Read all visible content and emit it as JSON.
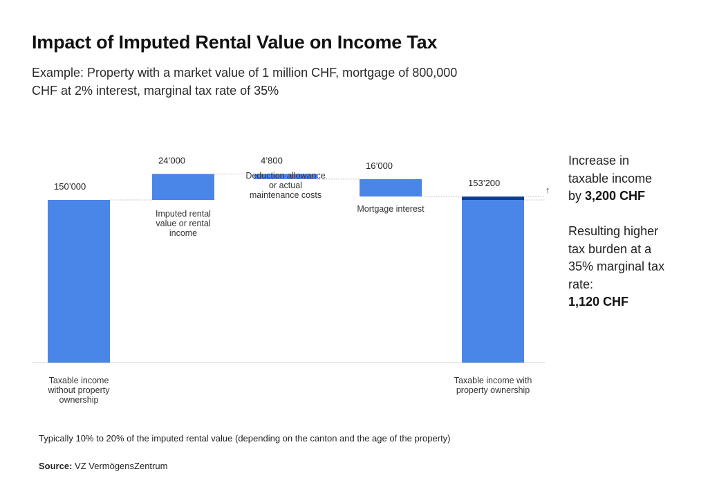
{
  "title": "Impact of Imputed Rental Value on Income Tax",
  "subtitle": "Example: Property with a market value of 1 million CHF, mortgage of 800,000 CHF at 2% interest, marginal tax rate of 35%",
  "colors": {
    "bar": "#4a86e8",
    "increase": "#0b3d91",
    "axis": "#cccccc",
    "connector": "#b5b5b5"
  },
  "chart_data": {
    "type": "waterfall",
    "steps": [
      {
        "label": [
          "Taxable income",
          "without property",
          "ownership"
        ],
        "value_label": "150’000",
        "value": 150000,
        "kind": "total"
      },
      {
        "label": [
          "Imputed rental",
          "value or rental",
          "income"
        ],
        "value_label": "24’000",
        "value": 24000,
        "kind": "increase"
      },
      {
        "label": [
          "Deduction allowance",
          "or actual",
          "maintenance costs"
        ],
        "value_label": "4’800",
        "value": -4800,
        "kind": "decrease"
      },
      {
        "label": [
          "Mortgage interest"
        ],
        "value_label": "16’000",
        "value": -16000,
        "kind": "decrease"
      },
      {
        "label": [
          "Taxable income with",
          "property ownership"
        ],
        "value_label": "153’200",
        "value": 153200,
        "kind": "total",
        "highlight_increase": 3200
      }
    ],
    "increase_marker": "↑"
  },
  "side_note_1": {
    "line1": "Increase in",
    "line2": "taxable income",
    "prefix": "by ",
    "value": "3,200 CHF"
  },
  "side_note_2": {
    "text": "Resulting higher tax burden at a 35% marginal tax rate:",
    "value": "1,120 CHF"
  },
  "footnote": "Typically 10% to 20% of the imputed rental value (depending on the canton and the age of the property)",
  "source": {
    "label": "Source:",
    "text": "VZ VermögensZentrum"
  }
}
